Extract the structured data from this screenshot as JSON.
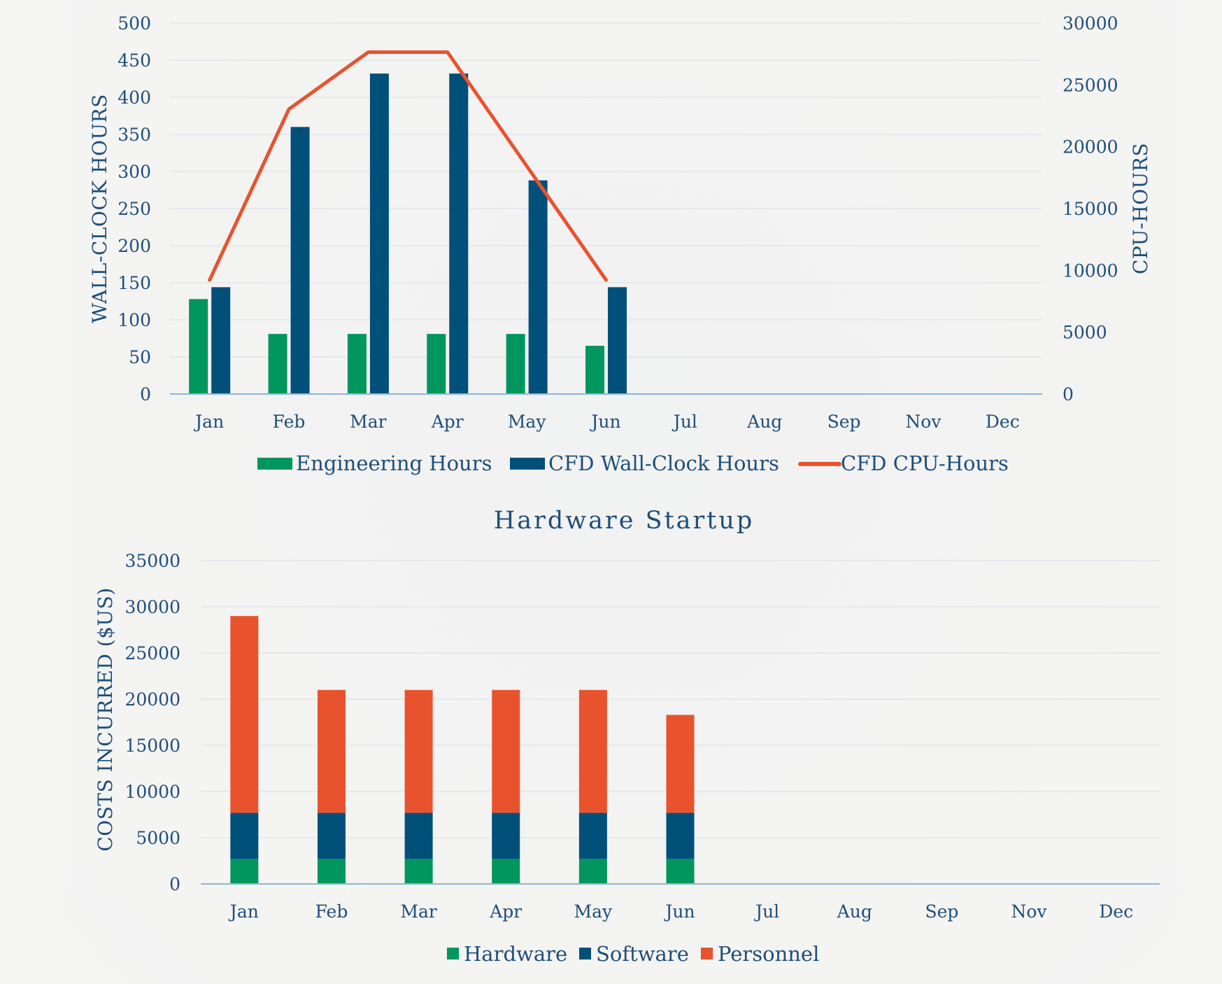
{
  "colors": {
    "engineering": "#00965e",
    "wall_clock": "#00507a",
    "cpu": "#e8532e",
    "hardware": "#00965e",
    "software": "#00507a",
    "personnel": "#e8532e",
    "text": "#1f4e79"
  },
  "chart_data": [
    {
      "type": "bar",
      "title": "",
      "categories": [
        "Jan",
        "Feb",
        "Mar",
        "Apr",
        "May",
        "Jun",
        "Jul",
        "Aug",
        "Sep",
        "Nov",
        "Dec"
      ],
      "ylabel": "WALL-CLOCK HOURS",
      "y2label": "CPU-HOURS",
      "ylim": [
        0,
        500
      ],
      "y2lim": [
        0,
        30000
      ],
      "yticks": [
        "0",
        "50",
        "100",
        "150",
        "200",
        "250",
        "300",
        "350",
        "400",
        "450",
        "500"
      ],
      "y2ticks": [
        "0",
        "5000",
        "10000",
        "15000",
        "20000",
        "25000",
        "30000"
      ],
      "grid": true,
      "legend": "bottom-center",
      "series": [
        {
          "name": "Engineering Hours",
          "type": "bar",
          "axis": "left",
          "values": [
            128,
            81,
            81,
            81,
            81,
            65,
            null,
            null,
            null,
            null,
            null
          ]
        },
        {
          "name": "CFD Wall-Clock Hours",
          "type": "bar",
          "axis": "left",
          "values": [
            144,
            360,
            432,
            432,
            288,
            144,
            null,
            null,
            null,
            null,
            null
          ]
        },
        {
          "name": "CFD CPU-Hours",
          "type": "line",
          "axis": "right",
          "values": [
            9216,
            23040,
            27648,
            27648,
            18432,
            9216,
            null,
            null,
            null,
            null,
            null
          ]
        }
      ]
    },
    {
      "type": "bar",
      "stacked": true,
      "title": "Hardware Startup",
      "categories": [
        "Jan",
        "Feb",
        "Mar",
        "Apr",
        "May",
        "Jun",
        "Jul",
        "Aug",
        "Sep",
        "Nov",
        "Dec"
      ],
      "ylabel": "COSTS INCURRED ($US)",
      "ylim": [
        0,
        35000
      ],
      "yticks": [
        "0",
        "5000",
        "10000",
        "15000",
        "20000",
        "25000",
        "30000",
        "35000"
      ],
      "grid": true,
      "legend": "bottom-center",
      "series": [
        {
          "name": "Hardware",
          "values": [
            2700,
            2700,
            2700,
            2700,
            2700,
            2700,
            null,
            null,
            null,
            null,
            null
          ]
        },
        {
          "name": "Software",
          "values": [
            5000,
            5000,
            5000,
            5000,
            5000,
            5000,
            null,
            null,
            null,
            null,
            null
          ]
        },
        {
          "name": "Personnel",
          "values": [
            21300,
            13300,
            13300,
            13300,
            13300,
            10600,
            null,
            null,
            null,
            null,
            null
          ]
        }
      ]
    }
  ]
}
